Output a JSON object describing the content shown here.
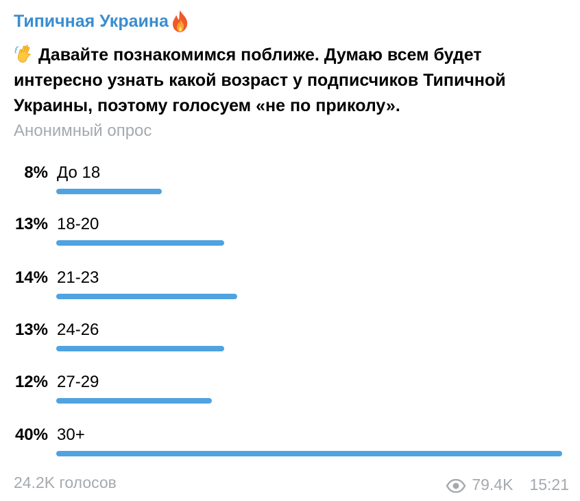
{
  "channel": {
    "title": "Типичная Украина",
    "title_icon": "fire-icon"
  },
  "question": {
    "icon": "waving-hand-icon",
    "text": "Давайте познакомимся поближе. Думаю всем будет интересно узнать какой возраст у подписчиков Типичной Украины, поэтому голосуем «не по приколу»."
  },
  "poll_type": "Анонимный опрос",
  "options": [
    {
      "percent_label": "8%",
      "label": "До 18",
      "percent": 8
    },
    {
      "percent_label": "13%",
      "label": "18-20",
      "percent": 13
    },
    {
      "percent_label": "14%",
      "label": "21-23",
      "percent": 14
    },
    {
      "percent_label": "13%",
      "label": "24-26",
      "percent": 13
    },
    {
      "percent_label": "12%",
      "label": "27-29",
      "percent": 12
    },
    {
      "percent_label": "40%",
      "label": "30+",
      "percent": 40
    }
  ],
  "footer": {
    "votes": "24.2K голосов",
    "views_icon": "eye-icon",
    "views": "79.4K",
    "time": "15:21"
  },
  "colors": {
    "accent": "#3a8dd0",
    "bar": "#4fa3e0",
    "muted": "#a5a9ae",
    "text": "#000000",
    "background": "#ffffff"
  }
}
